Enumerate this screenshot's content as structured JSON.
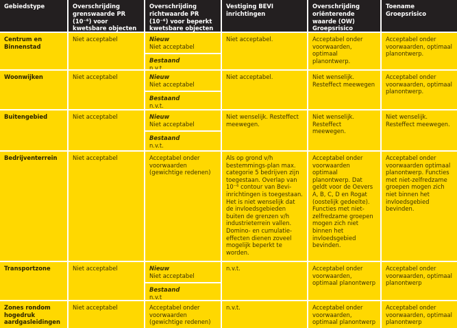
{
  "headers": [
    "Gebiedstype",
    "Overschrijding grenswaarde PR (10⁻⁶) voor kwetsbare objecten",
    "Overschrijding richtwaarde PR (10⁻⁶) voor beperkt kwetsbare objecten",
    "Vestiging BEVI inrichtingen",
    "Overschrijding oriënterende waarde (OW) Groepsrisico",
    "Toename Groepsrisico"
  ],
  "rows": [
    {
      "type": "Centrum en Binnenstad",
      "grens": "Niet acceptabel",
      "nieuw_label": "Nieuw",
      "nieuw": "Niet acceptabel",
      "bestaand_label": "Bestaand",
      "bestaand": "n.v.t.",
      "bevi": "Niet acceptabel.",
      "ow": "Acceptabel onder voorwaarden, optimaal planontwerp.",
      "toename": "Acceptabel onder voorwaarden, optimaal planontwerp."
    },
    {
      "type": "Woonwijken",
      "grens": "Niet acceptabel",
      "nieuw_label": "Nieuw",
      "nieuw": "Niet acceptabel",
      "bestaand_label": "Bestaand",
      "bestaand": "n.v.t.",
      "bevi": "Niet acceptabel.",
      "ow": "Niet wenselijk. Resteffect meewegen",
      "toename": "Acceptabel onder voorwaarden, optimaal planontwerp."
    },
    {
      "type": "Buitengebied",
      "grens": "Niet acceptabel",
      "nieuw_label": "Nieuw",
      "nieuw": "Niet acceptabel",
      "bestaand_label": "Bestaand",
      "bestaand": "n.v.t.",
      "bevi": "Niet wenselijk. Resteffect meewegen.",
      "ow": "Niet wenselijk. Resteffect meewegen.",
      "toename": "Niet wenselijk. Resteffect meewegen."
    },
    {
      "type": "Bedrijventerrein",
      "grens": "Niet acceptabel",
      "richt": "Acceptabel onder voorwaarden (gewichtige redenen)",
      "bevi": "Als op grond v/h bestemmings-plan max. categorie 5 bedrijven zijn toegestaan. Overlap van 10⁻⁶ contour van Bevi-inrichtingen is toegestaan. Het is niet wenselijk dat de invloedsgebieden buiten de grenzen v/h industrieterrein vallen. Domino- en cumulatie-effecten dienen zoveel mogelijk beperkt te worden.",
      "ow": "Acceptabel onder voorwaarden optimaal planontwerp. Dat geldt voor de Oevers A, B, C, D en Rogat (oostelijk gedeelte). Functies met niet-zelfredzame groepen mogen zich niet binnen het invloedsgebied bevinden.",
      "toename": "Acceptabel onder voorwaarden optimaal planontwerp. Functies met niet-zelfredzame groepen mogen zich niet binnen het invloedsgebied bevinden."
    },
    {
      "type": "Transportzone",
      "grens": "Niet acceptabel",
      "nieuw_label": "Nieuw",
      "nieuw": "Niet acceptabel",
      "bestaand_label": "Bestaand",
      "bestaand": "n.v.t",
      "bevi": "n.v.t.",
      "ow": "Acceptabel onder voorwaarden, optimaal planontwerp",
      "toename": "Acceptabel onder voorwaarden, optimaal planontwerp"
    },
    {
      "type": "Zones rondom hogedruk aardgasleidingen",
      "grens": "Niet acceptabel",
      "richt": "Acceptabel onder voorwaarden (gewichtige redenen)",
      "bevi": "n.v.t.",
      "ow": "Acceptabel onder voorwaarden, optimaal planontwerp",
      "toename": "Acceptabel onder voorwaarden, optimaal planontwerp"
    }
  ],
  "colors": {
    "header_bg": "#231f20",
    "cell_bg": "#ffd800",
    "grid": "#ffffff"
  }
}
